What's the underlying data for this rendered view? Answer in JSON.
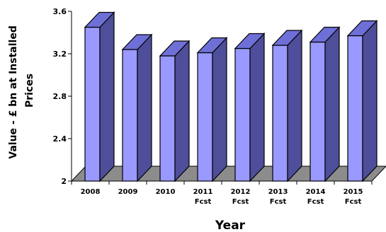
{
  "chart_data": {
    "type": "bar",
    "categories": [
      "2008",
      "2009",
      "2010",
      "2011",
      "2012",
      "2013",
      "2014",
      "2015"
    ],
    "category_sublabels": [
      "",
      "",
      "",
      "Fcst",
      "Fcst",
      "Fcst",
      "Fcst",
      "Fcst"
    ],
    "values": [
      3.45,
      3.24,
      3.18,
      3.21,
      3.25,
      3.28,
      3.31,
      3.37
    ],
    "yticks": [
      "2",
      "2.4",
      "2.8",
      "3.2",
      "3.6"
    ],
    "ylim": [
      2,
      3.6
    ],
    "xlabel": "Year",
    "ylabel_lines": [
      "Value - £ bn at Installed",
      "Prices"
    ],
    "grid": false,
    "style": "3d",
    "colors": {
      "bar_front": "#9999FF",
      "bar_top": "#6F6FD8",
      "bar_side": "#4E4E9A",
      "floor": "#8C8C8C"
    }
  }
}
